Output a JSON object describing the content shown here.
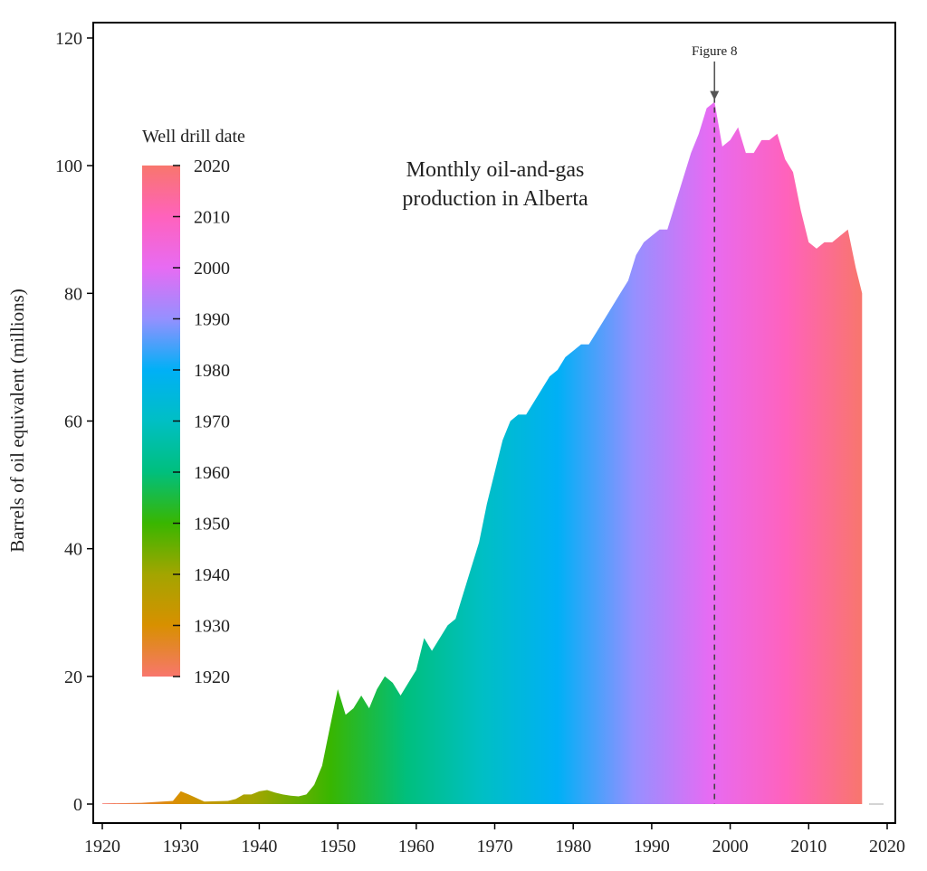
{
  "chart_data": {
    "type": "area",
    "title": "Monthly oil-and-gas\nproduction in Alberta",
    "title_lines": [
      "Monthly oil-and-gas",
      "production in Alberta"
    ],
    "xlabel": "",
    "ylabel": "Barrels of oil equivalent (millions)",
    "xlim": [
      1920,
      2020
    ],
    "ylim": [
      0,
      120
    ],
    "x_ticks": [
      1920,
      1930,
      1940,
      1950,
      1960,
      1970,
      1980,
      1990,
      2000,
      2010,
      2020
    ],
    "y_ticks": [
      0,
      20,
      40,
      60,
      80,
      100,
      120
    ],
    "grid": false,
    "legend": {
      "title": "Well drill date",
      "placement": "top-left",
      "range": [
        1920,
        2020
      ],
      "ticks": [
        2020,
        2010,
        2000,
        1990,
        1980,
        1970,
        1960,
        1950,
        1940,
        1930,
        1920
      ],
      "colors": [
        "#f8766d",
        "#d89000",
        "#a3a500",
        "#39b600",
        "#00bf7d",
        "#00bfc4",
        "#00b0f6",
        "#9590ff",
        "#e76bf3",
        "#ff62bc",
        "#f8766d"
      ]
    },
    "annotation": {
      "label": "Figure 8",
      "x": 1998
    },
    "series": [
      {
        "values": [
          [
            1920,
            0.1
          ],
          [
            1925,
            0.2
          ],
          [
            1929,
            0.5
          ],
          [
            1930,
            2.0
          ],
          [
            1931,
            1.5
          ],
          [
            1933,
            0.4
          ],
          [
            1936,
            0.5
          ],
          [
            1937,
            0.8
          ],
          [
            1938,
            1.5
          ],
          [
            1939,
            1.5
          ],
          [
            1940,
            2.0
          ],
          [
            1941,
            2.2
          ],
          [
            1942,
            1.8
          ],
          [
            1943,
            1.5
          ],
          [
            1944,
            1.3
          ],
          [
            1945,
            1.2
          ],
          [
            1946,
            1.5
          ],
          [
            1947,
            3.0
          ],
          [
            1948,
            6.0
          ],
          [
            1949,
            12.0
          ],
          [
            1950,
            18.0
          ],
          [
            1951,
            14.0
          ],
          [
            1952,
            15.0
          ],
          [
            1953,
            17.0
          ],
          [
            1954,
            15.0
          ],
          [
            1955,
            18.0
          ],
          [
            1956,
            20.0
          ],
          [
            1957,
            19.0
          ],
          [
            1958,
            17.0
          ],
          [
            1959,
            19.0
          ],
          [
            1960,
            21.0
          ],
          [
            1961,
            26.0
          ],
          [
            1962,
            24.0
          ],
          [
            1963,
            26.0
          ],
          [
            1964,
            28.0
          ],
          [
            1965,
            29.0
          ],
          [
            1966,
            33.0
          ],
          [
            1967,
            37.0
          ],
          [
            1968,
            41.0
          ],
          [
            1969,
            47.0
          ],
          [
            1970,
            52.0
          ],
          [
            1971,
            57.0
          ],
          [
            1972,
            60.0
          ],
          [
            1973,
            61.0
          ],
          [
            1974,
            61.0
          ],
          [
            1975,
            63.0
          ],
          [
            1976,
            65.0
          ],
          [
            1977,
            67.0
          ],
          [
            1978,
            68.0
          ],
          [
            1979,
            70.0
          ],
          [
            1980,
            71.0
          ],
          [
            1981,
            72.0
          ],
          [
            1982,
            72.0
          ],
          [
            1983,
            74.0
          ],
          [
            1984,
            76.0
          ],
          [
            1985,
            78.0
          ],
          [
            1986,
            80.0
          ],
          [
            1987,
            82.0
          ],
          [
            1988,
            86.0
          ],
          [
            1989,
            88.0
          ],
          [
            1990,
            89.0
          ],
          [
            1991,
            90.0
          ],
          [
            1992,
            90.0
          ],
          [
            1993,
            94.0
          ],
          [
            1994,
            98.0
          ],
          [
            1995,
            102.0
          ],
          [
            1996,
            105.0
          ],
          [
            1997,
            109.0
          ],
          [
            1998,
            110.0
          ],
          [
            1999,
            103.0
          ],
          [
            2000,
            104.0
          ],
          [
            2001,
            106.0
          ],
          [
            2002,
            102.0
          ],
          [
            2003,
            102.0
          ],
          [
            2004,
            104.0
          ],
          [
            2005,
            104.0
          ],
          [
            2006,
            105.0
          ],
          [
            2007,
            101.0
          ],
          [
            2008,
            99.0
          ],
          [
            2009,
            93.0
          ],
          [
            2010,
            88.0
          ],
          [
            2011,
            87.0
          ],
          [
            2012,
            88.0
          ],
          [
            2013,
            88.0
          ],
          [
            2014,
            89.0
          ],
          [
            2015,
            90.0
          ],
          [
            2016,
            84.0
          ],
          [
            2016.8,
            80.0
          ]
        ]
      }
    ]
  }
}
